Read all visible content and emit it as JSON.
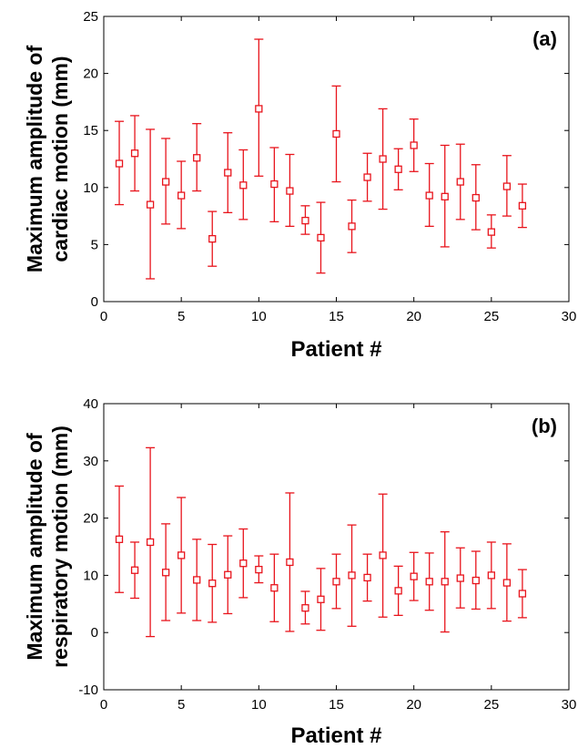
{
  "chart_data": [
    {
      "type": "scatter",
      "panel_label": "(a)",
      "xlabel": "Patient #",
      "ylabel_lines": [
        "Maximum amplitude of",
        "cardiac motion  (mm)"
      ],
      "xlim": [
        0,
        30
      ],
      "ylim": [
        0,
        25
      ],
      "xticks": [
        0,
        5,
        10,
        15,
        20,
        25,
        30
      ],
      "yticks": [
        0,
        5,
        10,
        15,
        20,
        25
      ],
      "marker": "square",
      "color": "#e8141c",
      "points": [
        {
          "x": 1,
          "y": 12.1,
          "low": 8.5,
          "high": 15.8
        },
        {
          "x": 2,
          "y": 13.0,
          "low": 9.7,
          "high": 16.3
        },
        {
          "x": 3,
          "y": 8.5,
          "low": 2.0,
          "high": 15.1
        },
        {
          "x": 4,
          "y": 10.5,
          "low": 6.8,
          "high": 14.3
        },
        {
          "x": 5,
          "y": 9.3,
          "low": 6.4,
          "high": 12.3
        },
        {
          "x": 6,
          "y": 12.6,
          "low": 9.7,
          "high": 15.6
        },
        {
          "x": 7,
          "y": 5.5,
          "low": 3.1,
          "high": 7.9
        },
        {
          "x": 8,
          "y": 11.3,
          "low": 7.8,
          "high": 14.8
        },
        {
          "x": 9,
          "y": 10.2,
          "low": 7.2,
          "high": 13.3
        },
        {
          "x": 10,
          "y": 16.9,
          "low": 11.0,
          "high": 23.0
        },
        {
          "x": 11,
          "y": 10.3,
          "low": 7.0,
          "high": 13.5
        },
        {
          "x": 12,
          "y": 9.7,
          "low": 6.6,
          "high": 12.9
        },
        {
          "x": 13,
          "y": 7.1,
          "low": 5.9,
          "high": 8.4
        },
        {
          "x": 14,
          "y": 5.6,
          "low": 2.5,
          "high": 8.7
        },
        {
          "x": 15,
          "y": 14.7,
          "low": 10.5,
          "high": 18.9
        },
        {
          "x": 16,
          "y": 6.6,
          "low": 4.3,
          "high": 8.9
        },
        {
          "x": 17,
          "y": 10.9,
          "low": 8.8,
          "high": 13.0
        },
        {
          "x": 18,
          "y": 12.5,
          "low": 8.1,
          "high": 16.9
        },
        {
          "x": 19,
          "y": 11.6,
          "low": 9.8,
          "high": 13.4
        },
        {
          "x": 20,
          "y": 13.7,
          "low": 11.4,
          "high": 16.0
        },
        {
          "x": 21,
          "y": 9.3,
          "low": 6.6,
          "high": 12.1
        },
        {
          "x": 22,
          "y": 9.2,
          "low": 4.8,
          "high": 13.7
        },
        {
          "x": 23,
          "y": 10.5,
          "low": 7.2,
          "high": 13.8
        },
        {
          "x": 24,
          "y": 9.1,
          "low": 6.3,
          "high": 12.0
        },
        {
          "x": 25,
          "y": 6.1,
          "low": 4.7,
          "high": 7.6
        },
        {
          "x": 26,
          "y": 10.1,
          "low": 7.5,
          "high": 12.8
        },
        {
          "x": 27,
          "y": 8.4,
          "low": 6.5,
          "high": 10.3
        }
      ]
    },
    {
      "type": "scatter",
      "panel_label": "(b)",
      "xlabel": "Patient #",
      "ylabel_lines": [
        "Maximum amplitude of",
        "respiratory motion (mm)"
      ],
      "xlim": [
        0,
        30
      ],
      "ylim": [
        -10,
        40
      ],
      "xticks": [
        0,
        5,
        10,
        15,
        20,
        25,
        30
      ],
      "yticks": [
        -10,
        0,
        10,
        20,
        30,
        40
      ],
      "marker": "square",
      "color": "#e8141c",
      "points": [
        {
          "x": 1,
          "y": 16.3,
          "low": 7.0,
          "high": 25.6
        },
        {
          "x": 2,
          "y": 10.9,
          "low": 6.0,
          "high": 15.8
        },
        {
          "x": 3,
          "y": 15.8,
          "low": -0.7,
          "high": 32.3
        },
        {
          "x": 4,
          "y": 10.5,
          "low": 2.1,
          "high": 19.0
        },
        {
          "x": 5,
          "y": 13.5,
          "low": 3.4,
          "high": 23.6
        },
        {
          "x": 6,
          "y": 9.2,
          "low": 2.1,
          "high": 16.3
        },
        {
          "x": 7,
          "y": 8.6,
          "low": 1.8,
          "high": 15.4
        },
        {
          "x": 8,
          "y": 10.1,
          "low": 3.3,
          "high": 16.9
        },
        {
          "x": 9,
          "y": 12.1,
          "low": 6.1,
          "high": 18.1
        },
        {
          "x": 10,
          "y": 11.0,
          "low": 8.7,
          "high": 13.4
        },
        {
          "x": 11,
          "y": 7.8,
          "low": 1.9,
          "high": 13.7
        },
        {
          "x": 12,
          "y": 12.3,
          "low": 0.2,
          "high": 24.4
        },
        {
          "x": 13,
          "y": 4.3,
          "low": 1.5,
          "high": 7.2
        },
        {
          "x": 14,
          "y": 5.8,
          "low": 0.4,
          "high": 11.2
        },
        {
          "x": 15,
          "y": 8.9,
          "low": 4.2,
          "high": 13.7
        },
        {
          "x": 16,
          "y": 10.0,
          "low": 1.1,
          "high": 18.8
        },
        {
          "x": 17,
          "y": 9.6,
          "low": 5.5,
          "high": 13.7
        },
        {
          "x": 18,
          "y": 13.5,
          "low": 2.7,
          "high": 24.2
        },
        {
          "x": 19,
          "y": 7.3,
          "low": 3.0,
          "high": 11.6
        },
        {
          "x": 20,
          "y": 9.8,
          "low": 5.6,
          "high": 14.0
        },
        {
          "x": 21,
          "y": 8.9,
          "low": 3.9,
          "high": 13.9
        },
        {
          "x": 22,
          "y": 8.9,
          "low": 0.1,
          "high": 17.6
        },
        {
          "x": 23,
          "y": 9.5,
          "low": 4.3,
          "high": 14.8
        },
        {
          "x": 24,
          "y": 9.1,
          "low": 4.1,
          "high": 14.2
        },
        {
          "x": 25,
          "y": 10.0,
          "low": 4.2,
          "high": 15.8
        },
        {
          "x": 26,
          "y": 8.7,
          "low": 2.0,
          "high": 15.5
        },
        {
          "x": 27,
          "y": 6.8,
          "low": 2.6,
          "high": 11.0
        }
      ]
    }
  ]
}
